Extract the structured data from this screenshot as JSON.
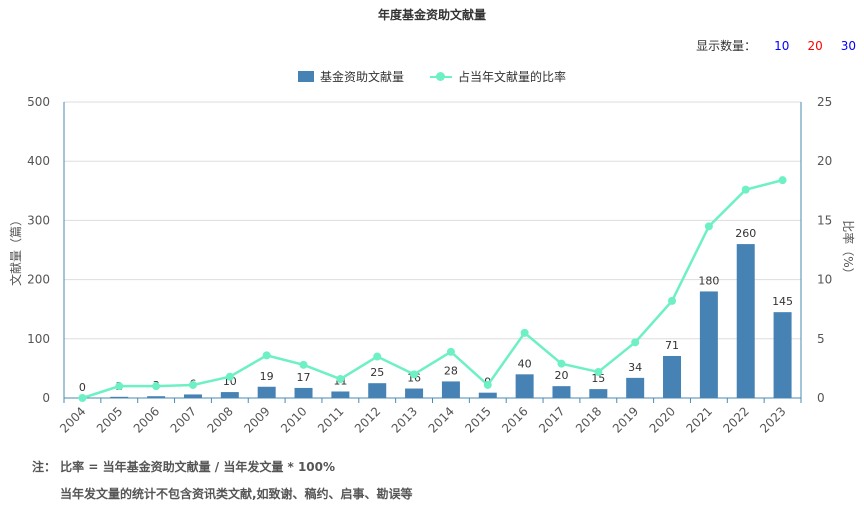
{
  "title": "年度基金资助文献量",
  "display_count": {
    "label": "显示数量：",
    "options": [
      {
        "label": "10",
        "color": "#0000ff"
      },
      {
        "label": "20",
        "color": "#ff0000"
      },
      {
        "label": "30",
        "color": "#0000ff"
      }
    ]
  },
  "notes": {
    "line1": "注： 比率 = 当年基金资助文献量 / 当年发文量 * 100%",
    "line2": "当年发文量的统计不包含资讯类文献,如致谢、稿约、启事、勘误等"
  },
  "chart_data": {
    "type": "bar",
    "categories": [
      "2004",
      "2005",
      "2006",
      "2007",
      "2008",
      "2009",
      "2010",
      "2011",
      "2012",
      "2013",
      "2014",
      "2015",
      "2016",
      "2017",
      "2018",
      "2019",
      "2020",
      "2021",
      "2022",
      "2023"
    ],
    "series": [
      {
        "name": "基金资助文献量",
        "type": "bar",
        "axis": "left",
        "color": "#4682b4",
        "values": [
          0,
          2,
          3,
          6,
          10,
          19,
          17,
          11,
          25,
          16,
          28,
          9,
          40,
          20,
          15,
          34,
          71,
          180,
          260,
          145
        ]
      },
      {
        "name": "占当年文献量的比率",
        "type": "line",
        "axis": "right",
        "color": "#6ef0c5",
        "values": [
          0.0,
          1.0,
          1.0,
          1.1,
          1.8,
          3.6,
          2.8,
          1.6,
          3.5,
          2.0,
          3.9,
          1.1,
          5.5,
          2.9,
          2.2,
          4.7,
          8.2,
          14.5,
          17.6,
          18.4
        ]
      }
    ],
    "ylabel": "文献量（篇）",
    "y2label": "比率（%）",
    "ylim": [
      0,
      500
    ],
    "y2lim": [
      0,
      25
    ],
    "yticks": [
      0,
      100,
      200,
      300,
      400,
      500
    ],
    "y2ticks": [
      0,
      5,
      10,
      15,
      20,
      25
    ],
    "grid": true,
    "legend": "top-center"
  }
}
